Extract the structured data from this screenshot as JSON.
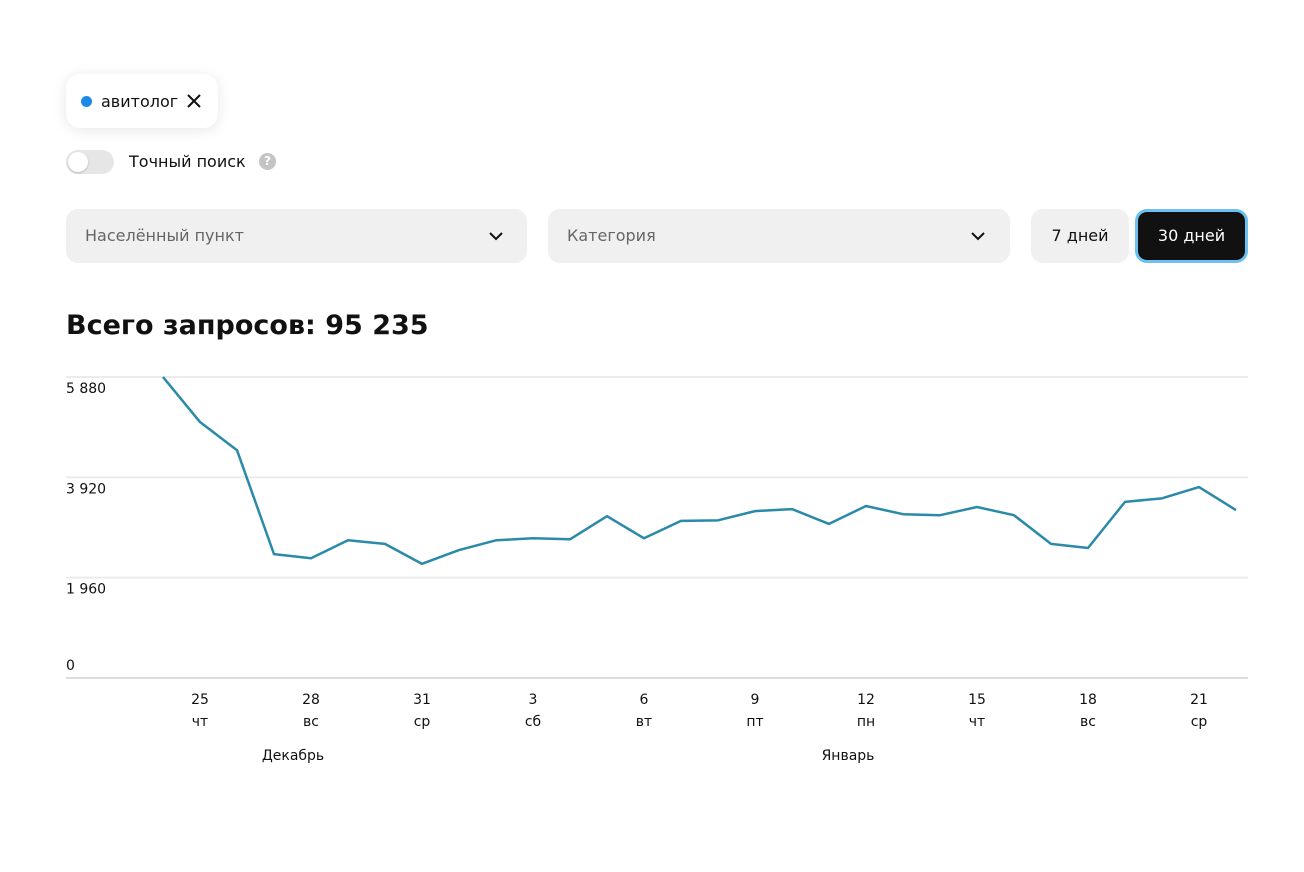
{
  "filters": {
    "tag": "авитолог",
    "exact_search": "Точный поиск",
    "location": "Населённый пункт",
    "category": "Категория",
    "period_buttons": [
      "7 дней",
      "30 дней"
    ]
  },
  "chart_data": {
    "type": "line",
    "title": "Всего запросов: 95 235",
    "color": "#2a8aa8",
    "categories": [
      null,
      "25",
      null,
      null,
      "28",
      null,
      null,
      "31",
      null,
      null,
      "3",
      null,
      null,
      "6",
      null,
      null,
      "9",
      null,
      null,
      "12",
      null,
      null,
      "15",
      null,
      null,
      "18",
      null,
      null,
      "21",
      null
    ],
    "weekdays": [
      null,
      "чт",
      null,
      null,
      "вс",
      null,
      null,
      "ср",
      null,
      null,
      "сб",
      null,
      null,
      "вт",
      null,
      null,
      "пт",
      null,
      null,
      "пн",
      null,
      null,
      "чт",
      null,
      null,
      "вс",
      null,
      null,
      "ср",
      null
    ],
    "label_colors": [
      null,
      "#111111",
      null,
      null,
      "#d48a8a",
      null,
      null,
      "#111111",
      null,
      null,
      "#d48a8a",
      null,
      null,
      "#111111",
      null,
      null,
      "#111111",
      null,
      null,
      "#111111",
      null,
      null,
      "#111111",
      null,
      null,
      "#d48a8a",
      null,
      null,
      "#111111",
      null
    ],
    "months": [
      "Декабрь",
      "Январь"
    ],
    "values": [
      5880,
      5000,
      4450,
      2420,
      2340,
      2690,
      2620,
      2230,
      2500,
      2690,
      2730,
      2710,
      3160,
      2730,
      3070,
      3080,
      3260,
      3300,
      3010,
      3360,
      3200,
      3180,
      3340,
      3180,
      2620,
      2540,
      3440,
      3510,
      3730,
      3280
    ],
    "ylim": [
      0,
      5880
    ],
    "yticks": [
      {
        "value": 0,
        "label": "0"
      },
      {
        "value": 1960,
        "label": "1 960"
      },
      {
        "value": 3920,
        "label": "3 920"
      },
      {
        "value": 5880,
        "label": "5 880"
      }
    ],
    "grid": true
  }
}
